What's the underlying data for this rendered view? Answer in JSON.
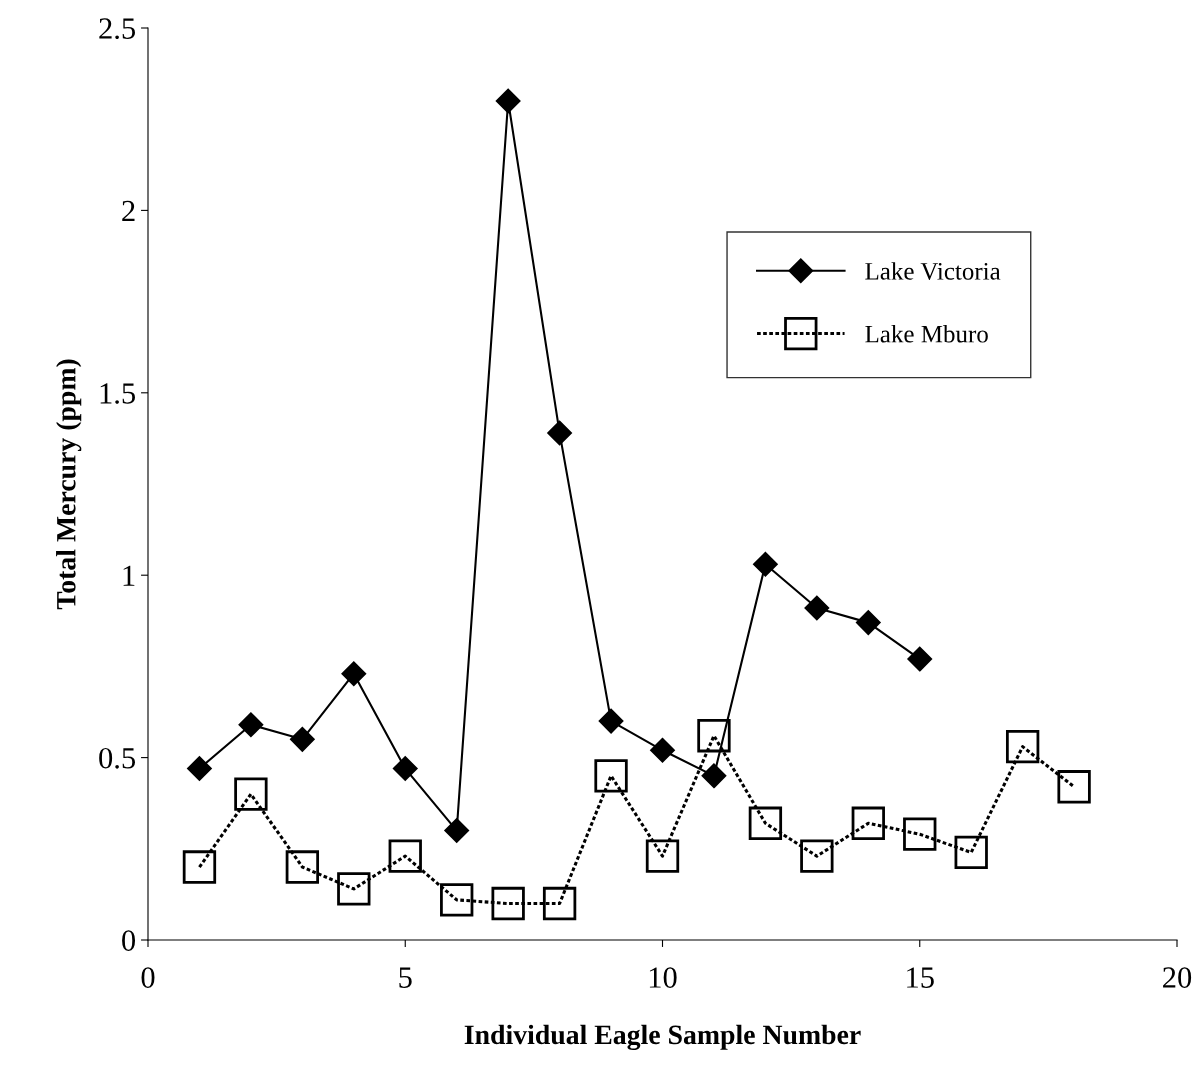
{
  "chart_data": {
    "type": "line",
    "xlabel": "Individual Eagle Sample Number",
    "ylabel": "Total Mercury (ppm)",
    "xlim": [
      0,
      20
    ],
    "xticks": [
      0,
      5,
      10,
      15,
      20
    ],
    "ylim": [
      0,
      2.5
    ],
    "yticks": [
      0,
      0.5,
      1,
      1.5,
      2,
      2.5
    ],
    "grid": false,
    "legend": "top right",
    "series": [
      {
        "name": "Lake Victoria",
        "color": "#000000",
        "marker": "diamond",
        "line_style": "solid",
        "x": [
          1,
          2,
          3,
          4,
          5,
          6,
          7,
          8,
          9,
          10,
          11,
          12,
          13,
          14,
          15
        ],
        "values": [
          0.47,
          0.59,
          0.55,
          0.73,
          0.47,
          0.3,
          2.3,
          1.39,
          0.6,
          0.52,
          0.45,
          1.03,
          0.91,
          0.87,
          0.77
        ]
      },
      {
        "name": "Lake Mburo",
        "color": "#000000",
        "marker": "square",
        "line_style": "dotted",
        "x": [
          1,
          2,
          3,
          4,
          5,
          6,
          7,
          8,
          9,
          10,
          11,
          12,
          13,
          14,
          15,
          16,
          17,
          18
        ],
        "values": [
          0.2,
          0.4,
          0.2,
          0.14,
          0.23,
          0.11,
          0.1,
          0.1,
          0.45,
          0.23,
          0.56,
          0.32,
          0.23,
          0.32,
          0.29,
          0.24,
          0.53,
          0.42
        ]
      }
    ]
  }
}
